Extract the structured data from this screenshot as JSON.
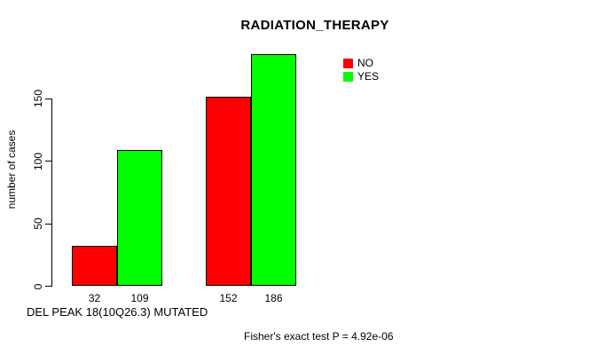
{
  "chart_data": {
    "type": "bar",
    "title": "RADIATION_THERAPY",
    "ylabel": "number of cases",
    "xlabel": "DEL PEAK 18(10Q26.3) MUTATED",
    "annotation": "Fisher's exact test P = 4.92e-06",
    "ylim": [
      0,
      150
    ],
    "yticks": [
      0,
      50,
      100,
      150
    ],
    "grid": false,
    "legend_position": "top-right-of-plot",
    "series": [
      {
        "name": "NO",
        "color": "#ff0000"
      },
      {
        "name": "YES",
        "color": "#00ff00"
      }
    ],
    "groups": [
      {
        "bars": [
          {
            "series": "NO",
            "value": 32,
            "label": "32"
          },
          {
            "series": "YES",
            "value": 109,
            "label": "109"
          }
        ]
      },
      {
        "bars": [
          {
            "series": "NO",
            "value": 152,
            "label": "152"
          },
          {
            "series": "YES",
            "value": 186,
            "label": "186"
          }
        ]
      }
    ]
  }
}
